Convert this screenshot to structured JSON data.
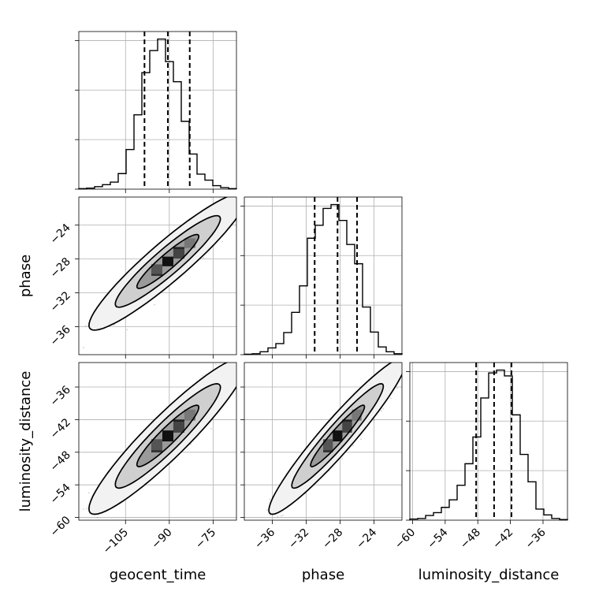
{
  "chart_data": {
    "type": "corner",
    "parameters": [
      "geocent_time",
      "phase",
      "luminosity_distance"
    ],
    "axes": {
      "geocent_time": {
        "label": "geocent_time",
        "range": [
          -121,
          -67
        ],
        "ticks": [
          -105,
          -90,
          -75
        ],
        "tick_labels": [
          "−105",
          "−90",
          "−75"
        ]
      },
      "phase": {
        "label": "phase",
        "range": [
          -39.3,
          -20.7
        ],
        "ticks": [
          -36,
          -32,
          -28,
          -24
        ],
        "tick_labels": [
          "−36",
          "−32",
          "−28",
          "−24"
        ]
      },
      "luminosity_distance": {
        "label": "luminosity_distance",
        "range": [
          -60.5,
          -31.5
        ],
        "ticks": [
          -60,
          -54,
          -48,
          -42,
          -36
        ],
        "tick_labels": [
          "−60",
          "−54",
          "−48",
          "−42",
          "−36"
        ]
      }
    },
    "marginals": [
      {
        "parameter": "geocent_time",
        "quantiles": [
          -98.5,
          -90.5,
          -83.0
        ],
        "bin_edges": [
          -121,
          -118.3,
          -115.6,
          -112.9,
          -110.2,
          -107.5,
          -104.8,
          -102.1,
          -99.4,
          -96.7,
          -94.0,
          -91.3,
          -88.6,
          -85.9,
          -83.2,
          -80.5,
          -77.8,
          -75.1,
          -72.4,
          -69.7,
          -67
        ],
        "counts": [
          1,
          2,
          5,
          9,
          14,
          31,
          79,
          148,
          232,
          276,
          299,
          254,
          214,
          135,
          70,
          30,
          18,
          7,
          3,
          1
        ]
      },
      {
        "parameter": "phase",
        "quantiles": [
          -31.0,
          -28.3,
          -26.0
        ],
        "bin_edges": [
          -39.3,
          -38.37,
          -37.44,
          -36.51,
          -35.58,
          -34.65,
          -33.72,
          -32.79,
          -31.86,
          -30.93,
          -30.0,
          -29.07,
          -28.14,
          -27.21,
          -26.28,
          -25.35,
          -24.42,
          -23.49,
          -22.56,
          -21.63,
          -20.7
        ],
        "counts": [
          1,
          2,
          6,
          14,
          23,
          46,
          88,
          143,
          242,
          269,
          304,
          312,
          279,
          229,
          189,
          99,
          47,
          16,
          6,
          2
        ]
      },
      {
        "parameter": "luminosity_distance",
        "quantiles": [
          -48.3,
          -45.0,
          -41.8
        ],
        "bin_edges": [
          -60.5,
          -59.05,
          -57.6,
          -56.15,
          -54.7,
          -53.25,
          -51.8,
          -50.35,
          -48.9,
          -47.45,
          -46.0,
          -44.55,
          -43.1,
          -41.65,
          -40.2,
          -38.75,
          -37.3,
          -35.85,
          -34.4,
          -32.95,
          -31.5
        ],
        "counts": [
          2,
          3,
          8,
          13,
          22,
          35,
          60,
          97,
          143,
          210,
          253,
          258,
          248,
          181,
          113,
          66,
          19,
          9,
          3,
          1
        ]
      }
    ],
    "pairs": [
      {
        "x": "geocent_time",
        "y": "phase",
        "center": [
          -90.5,
          -28.3
        ],
        "sd": [
          9.0,
          2.7
        ],
        "corr": 0.93
      },
      {
        "x": "geocent_time",
        "y": "luminosity_distance",
        "center": [
          -90.5,
          -45.0
        ],
        "sd": [
          9.0,
          4.8
        ],
        "corr": 0.93
      },
      {
        "x": "phase",
        "y": "luminosity_distance",
        "center": [
          -28.3,
          -45.0
        ],
        "sd": [
          2.7,
          4.8
        ],
        "corr": 0.95
      }
    ],
    "contour_levels": [
      0.5,
      0.865,
      0.989
    ],
    "grid": true,
    "legend": "none",
    "title": ""
  }
}
